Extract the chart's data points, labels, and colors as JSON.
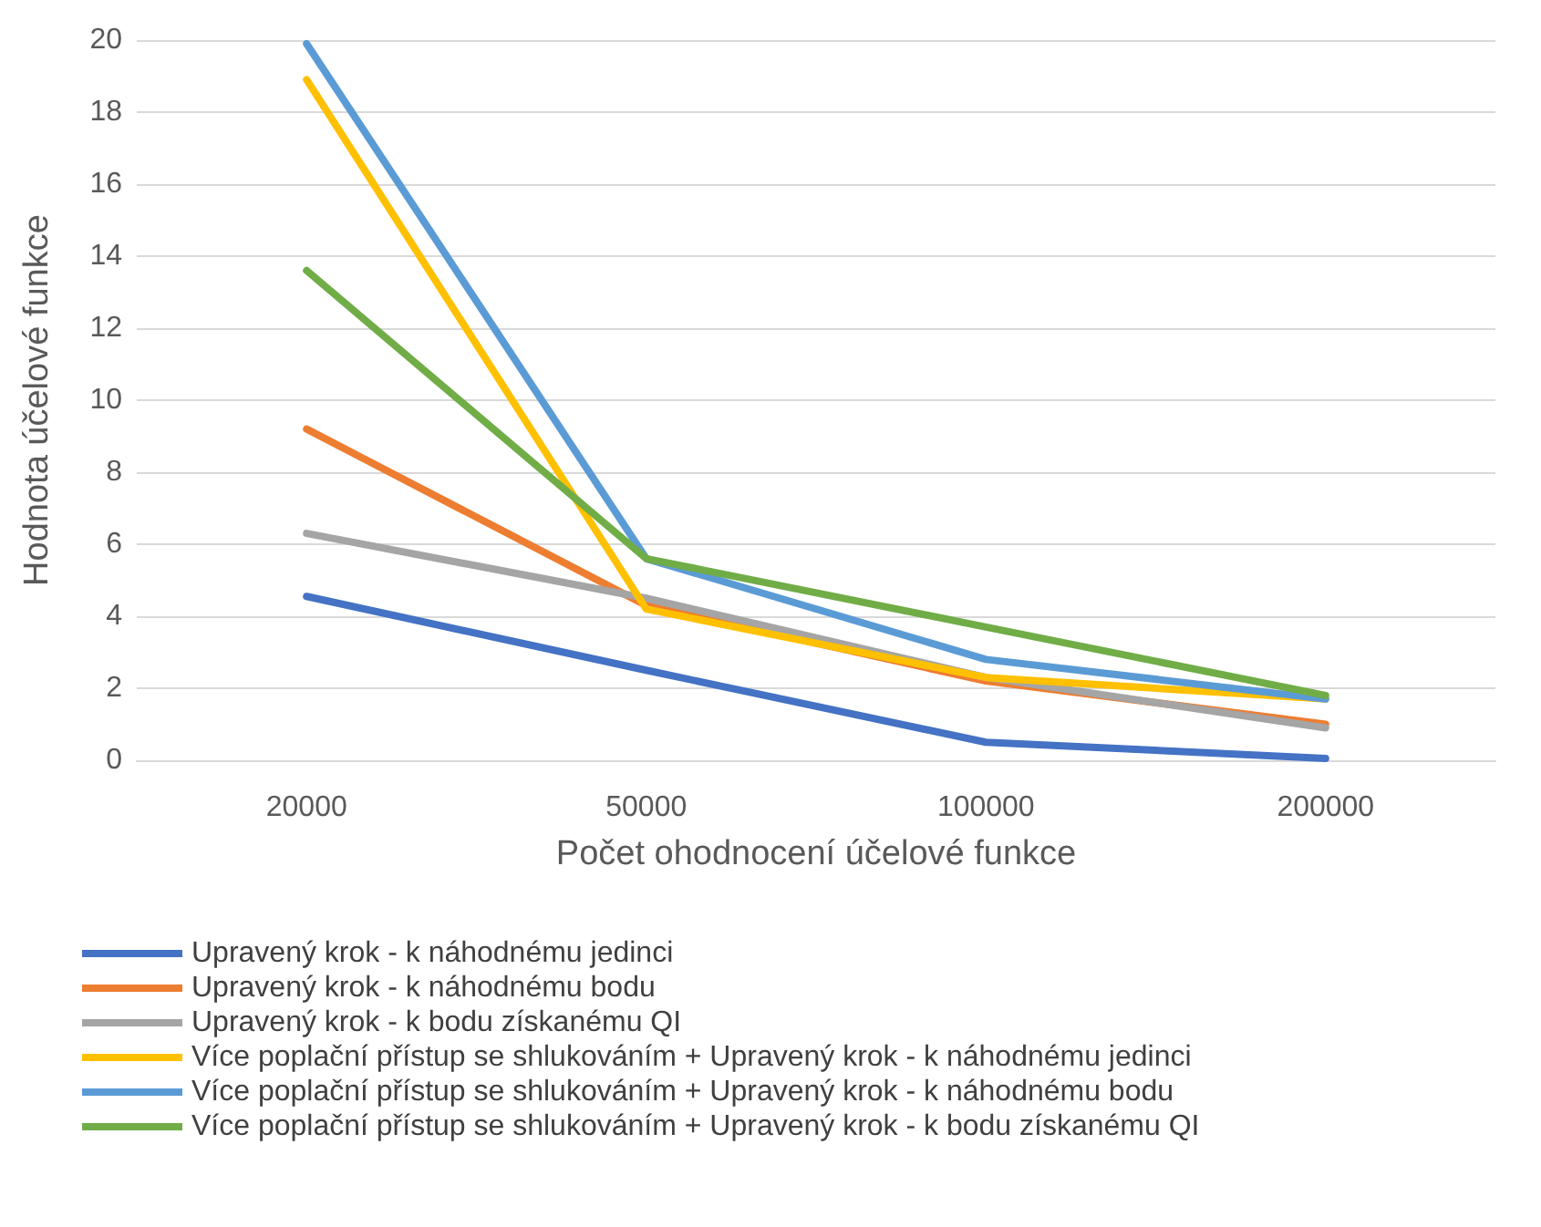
{
  "chart_data": {
    "type": "line",
    "xlabel": "Počet ohodnocení účelové funkce",
    "ylabel": "Hodnota účelové funkce",
    "categories": [
      "20000",
      "50000",
      "100000",
      "200000"
    ],
    "ylim": [
      0,
      20
    ],
    "yticks": [
      0,
      2,
      4,
      6,
      8,
      10,
      12,
      14,
      16,
      18,
      20
    ],
    "grid": "y",
    "legend": "bottom",
    "marker": "none",
    "line_style": "solid",
    "series": [
      {
        "name": "Upravený krok - k náhodnému jedinci",
        "color": "#4472c4",
        "values": [
          4.55,
          2.5,
          0.5,
          0.05
        ]
      },
      {
        "name": "Upravený krok - k náhodnému bodu",
        "color": "#ed7d31",
        "values": [
          9.2,
          4.3,
          2.2,
          1.0
        ]
      },
      {
        "name": "Upravený krok - k bodu získanému QI",
        "color": "#a5a5a5",
        "values": [
          6.3,
          4.5,
          2.3,
          0.9
        ]
      },
      {
        "name": "Více poplační přístup se shlukováním + Upravený krok - k náhodnému jedinci",
        "color": "#ffc000",
        "values": [
          18.9,
          4.2,
          2.3,
          1.7
        ]
      },
      {
        "name": "Více poplační přístup se shlukováním + Upravený krok - k náhodnému bodu",
        "color": "#5b9bd5",
        "values": [
          19.9,
          5.6,
          2.8,
          1.7
        ]
      },
      {
        "name": "Více poplační přístup se shlukováním + Upravený krok - k bodu získanému QI",
        "color": "#70ad47",
        "values": [
          13.6,
          5.6,
          3.7,
          1.8
        ]
      }
    ]
  }
}
